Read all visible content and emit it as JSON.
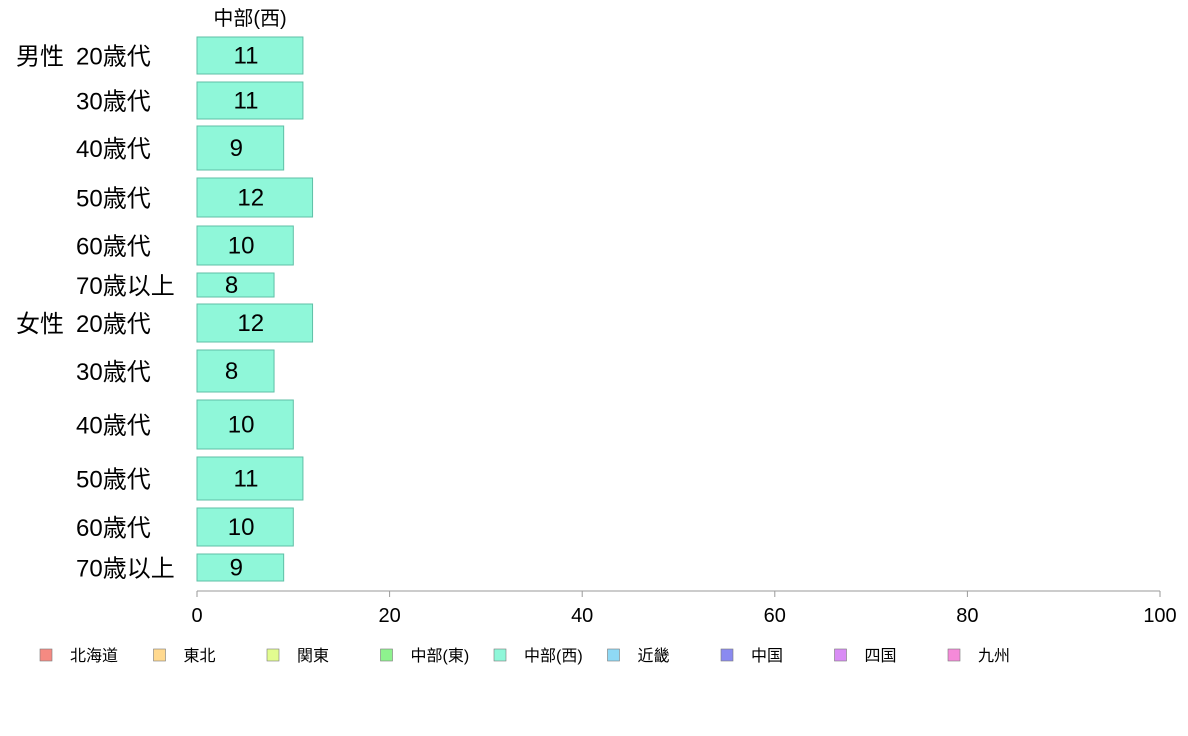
{
  "chart_data": {
    "type": "bar",
    "orientation": "horizontal",
    "series": [
      {
        "name": "中部(西)",
        "color": "#8ff7d9",
        "values": [
          11,
          11,
          9,
          12,
          10,
          8,
          12,
          8,
          10,
          11,
          10,
          9
        ]
      }
    ],
    "groups": [
      {
        "label": "男性",
        "categories": [
          "20歳代",
          "30歳代",
          "40歳代",
          "50歳代",
          "60歳代",
          "70歳以上"
        ]
      },
      {
        "label": "女性",
        "categories": [
          "20歳代",
          "30歳代",
          "40歳代",
          "50歳代",
          "60歳代",
          "70歳以上"
        ]
      }
    ],
    "categories": [
      "20歳代",
      "30歳代",
      "40歳代",
      "50歳代",
      "60歳代",
      "70歳以上",
      "20歳代",
      "30歳代",
      "40歳代",
      "50歳代",
      "60歳代",
      "70歳以上"
    ],
    "xlim": [
      0,
      100
    ],
    "x_ticks": [
      "0",
      "20",
      "40",
      "60",
      "80",
      "100"
    ],
    "grid": false,
    "legend_position": "bottom",
    "legend": [
      {
        "name": "北海道",
        "color": "#f58a82"
      },
      {
        "name": "東北",
        "color": "#ffd98f"
      },
      {
        "name": "関東",
        "color": "#e2fc8f"
      },
      {
        "name": "中部(東)",
        "color": "#8ef28e"
      },
      {
        "name": "中部(西)",
        "color": "#8ff7d9"
      },
      {
        "name": "近畿",
        "color": "#8fd9f5"
      },
      {
        "name": "中国",
        "color": "#8a8af0"
      },
      {
        "name": "四国",
        "color": "#d98cf5"
      },
      {
        "name": "九州",
        "color": "#f58ad9"
      }
    ]
  }
}
